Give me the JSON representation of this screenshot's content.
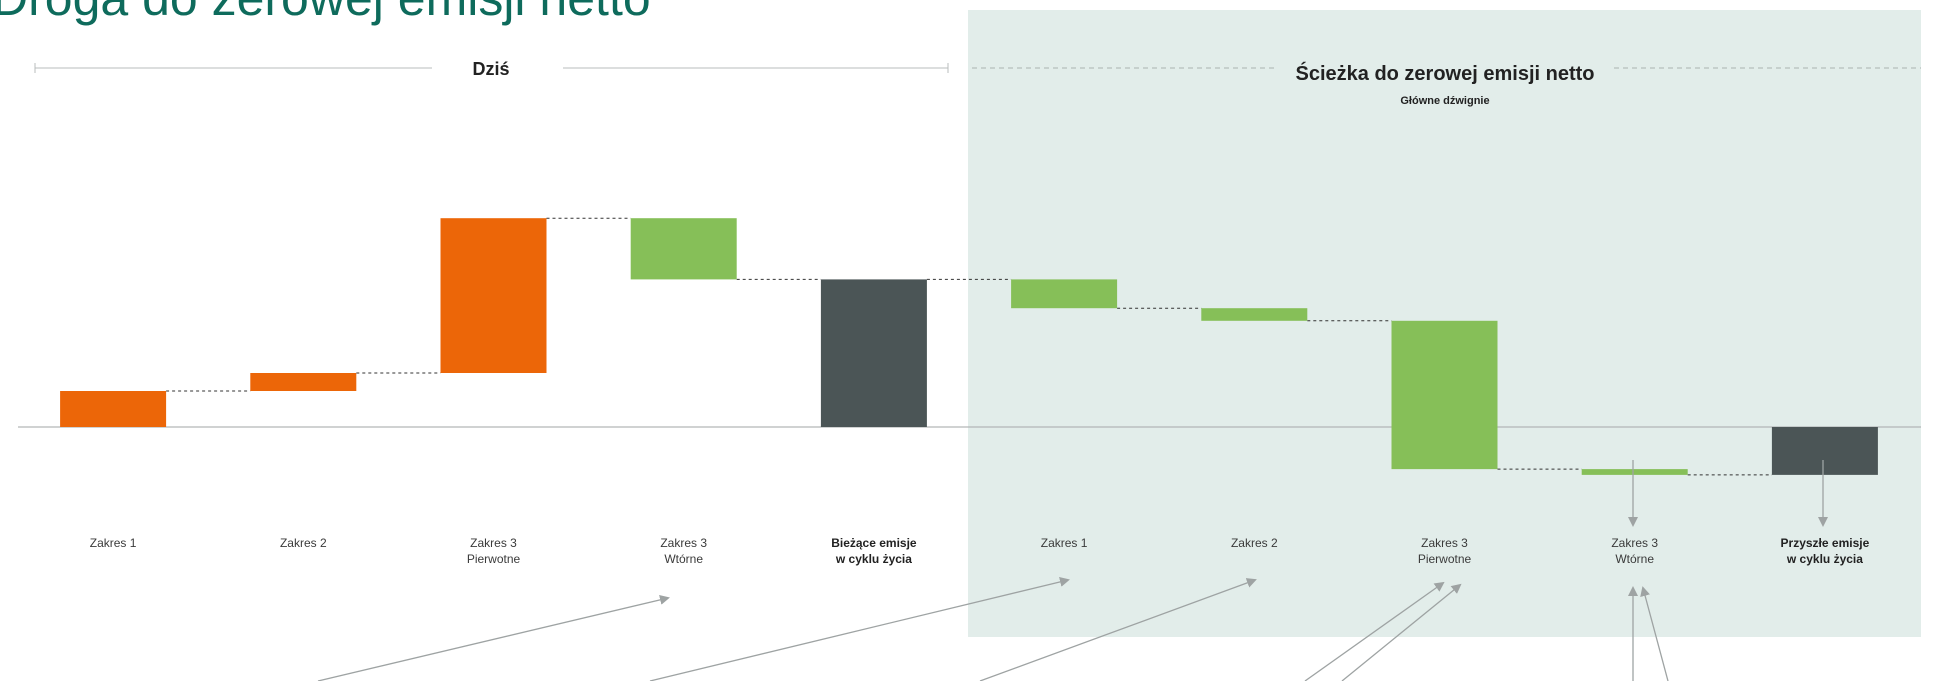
{
  "title": "Droga do zerowej emisji netto",
  "sections": {
    "today": {
      "label": "Dziś"
    },
    "path": {
      "label": "Ścieżka do zerowej emisji netto",
      "sublabel": "Główne dźwignie"
    }
  },
  "colors": {
    "increase": "#ec6608",
    "decrease": "#86bf58",
    "total": "#4b5556",
    "path_background": "#e2edea",
    "title": "#0e6b5c"
  },
  "chart_data": {
    "type": "bar",
    "subtype": "waterfall",
    "title": "Droga do zerowej emisji netto",
    "categories": [
      {
        "line1": "Zakres 1",
        "line2": ""
      },
      {
        "line1": "Zakres 2",
        "line2": ""
      },
      {
        "line1": "Zakres 3",
        "line2": "Pierwotne"
      },
      {
        "line1": "Zakres 3",
        "line2": "Wtórne"
      },
      {
        "line1": "Bieżące emisje",
        "line2": "w cyklu życia",
        "bold": true
      },
      {
        "line1": "Zakres 1",
        "line2": ""
      },
      {
        "line1": "Zakres 2",
        "line2": ""
      },
      {
        "line1": "Zakres 3",
        "line2": "Pierwotne"
      },
      {
        "line1": "Zakres 3",
        "line2": "Wtórne"
      },
      {
        "line1": "Przyszłe emisje",
        "line2": "w cyklu życia",
        "bold": true
      }
    ],
    "bars": [
      {
        "kind": "increase",
        "from": 0,
        "to": 10
      },
      {
        "kind": "increase",
        "from": 10,
        "to": 15
      },
      {
        "kind": "increase",
        "from": 15,
        "to": 58
      },
      {
        "kind": "decrease",
        "from": 58,
        "to": 41
      },
      {
        "kind": "total",
        "from": 0,
        "to": 41
      },
      {
        "kind": "decrease",
        "from": 41,
        "to": 33
      },
      {
        "kind": "decrease",
        "from": 33,
        "to": 29.5
      },
      {
        "kind": "decrease",
        "from": 29.5,
        "to": -11.7
      },
      {
        "kind": "decrease",
        "from": -11.7,
        "to": -13.3
      },
      {
        "kind": "total",
        "from": 0,
        "to": -13.3
      }
    ],
    "ylim": [
      -14,
      58
    ],
    "xlabel": "",
    "ylabel": "",
    "grid": false,
    "legend": "none"
  }
}
